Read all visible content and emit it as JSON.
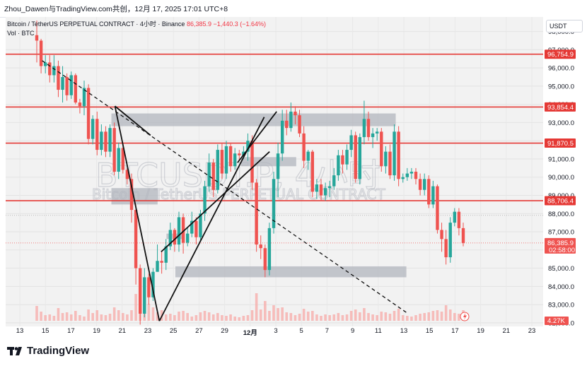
{
  "credit": "Zhou_Dawen与TradingView.com共创，12月 17, 2025 17:01 UTC+8",
  "legend": {
    "symbol": "Bitcoin / TetherUS PERPETUAL CONTRACT · 4小时 · Binance",
    "price": "86,385.9",
    "change": "−1,440.3 (−1.64%)",
    "volume": "Vol · BTC"
  },
  "currency": "USDT",
  "watermark": {
    "ticker": "BTCUSDT.P, 4小时",
    "name": "Bitcoin / TetherUS PERPETUAL CONTRACT"
  },
  "colors": {
    "up": "#26a69a",
    "down": "#ef5350",
    "level": "#e53935",
    "zone": "#b2b5be"
  },
  "levels": [
    {
      "price": 96754.9,
      "label": "96,754.9"
    },
    {
      "price": 93854.4,
      "label": "93,854.4"
    },
    {
      "price": 91870.5,
      "label": "91,870.5"
    },
    {
      "price": 88706.4,
      "label": "88,706.4"
    }
  ],
  "last_price": {
    "price": 86385.9,
    "label": "86,385.9",
    "countdown": "02:58:00"
  },
  "volume_badge": "4.27K",
  "icons": {
    "alert": "lightning-icon",
    "logo": "tradingview-logo-icon"
  },
  "chart_data": {
    "type": "candlestick",
    "title": "Bitcoin / TetherUS PERPETUAL CONTRACT · 4小时 · Binance",
    "timeframe": "4小时",
    "y_ticks": [
      "98,000.0",
      "97,000.0",
      "96,000.0",
      "95,000.0",
      "94,000.0",
      "93,000.0",
      "92,000.0",
      "91,000.0",
      "90,000.0",
      "89,000.0",
      "88,000.0",
      "87,000.0",
      "86,000.0",
      "85,000.0",
      "84,000.0",
      "83,000.0",
      "82,000.0"
    ],
    "y_tick_values": [
      98000,
      97000,
      96000,
      95000,
      94000,
      93000,
      92000,
      91000,
      90000,
      89000,
      88000,
      87000,
      86000,
      85000,
      84000,
      83000,
      82000
    ],
    "ylim": [
      81800,
      98800
    ],
    "x_ticks": [
      "13",
      "15",
      "17",
      "19",
      "21",
      "23",
      "25",
      "27",
      "29",
      "12月",
      "3",
      "5",
      "7",
      "9",
      "11",
      "13",
      "15",
      "17",
      "19",
      "21",
      "23"
    ],
    "candle_day_range": [
      14,
      38
    ],
    "closes": [
      97500,
      96100,
      96300,
      95600,
      96100,
      94800,
      95500,
      94500,
      95600,
      94100,
      93900,
      94900,
      92100,
      93200,
      91500,
      92500,
      91400,
      92700,
      90300,
      91600,
      90400,
      89900,
      88200,
      85000,
      82500,
      84500,
      83400,
      84800,
      85400,
      85300,
      86200,
      87100,
      86300,
      87800,
      86400,
      86900,
      87600,
      86700,
      88000,
      89500,
      90800,
      89300,
      91500,
      90200,
      91700,
      90600,
      91300,
      91200,
      91400,
      92000,
      89700,
      86300,
      86100,
      84900,
      87200,
      89900,
      91300,
      93100,
      92700,
      93600,
      93400,
      92400,
      90900,
      91400,
      89200,
      89600,
      89000,
      89400,
      89500,
      90100,
      91200,
      90700,
      91500,
      92300,
      89900,
      92200,
      93200,
      92200,
      92400,
      92500,
      90600,
      91400,
      90100,
      92500,
      89900,
      90000,
      90200,
      90300,
      89900,
      89300,
      89900,
      88500,
      89500,
      87100,
      86600,
      85600,
      87500,
      88100,
      87200,
      86386
    ],
    "highs": [
      98600,
      97600,
      96700,
      96700,
      96700,
      96400,
      96100,
      95700,
      95800,
      95700,
      94300,
      95300,
      95100,
      93400,
      93600,
      92900,
      92800,
      92900,
      93000,
      91900,
      91800,
      90500,
      90200,
      88500,
      85200,
      85000,
      84700,
      85000,
      86300,
      85900,
      86600,
      87500,
      87200,
      88100,
      88000,
      87200,
      88100,
      87800,
      88200,
      89800,
      91300,
      91000,
      91800,
      91900,
      92000,
      91900,
      91600,
      91500,
      91700,
      92400,
      92300,
      89900,
      86800,
      86300,
      87500,
      90300,
      91900,
      93700,
      93700,
      94100,
      93900,
      93700,
      92800,
      91500,
      91500,
      89900,
      89900,
      89700,
      89800,
      90500,
      91500,
      91500,
      91800,
      92600,
      92500,
      92400,
      94200,
      93600,
      92700,
      92700,
      92700,
      91700,
      91800,
      92900,
      92800,
      90200,
      90500,
      90500,
      90500,
      90200,
      90200,
      90100,
      89800,
      89600,
      87500,
      87100,
      87800,
      88300,
      88300,
      87500
    ],
    "lows": [
      96300,
      95700,
      95700,
      95200,
      95200,
      94400,
      94100,
      94200,
      94300,
      94000,
      93500,
      93400,
      91800,
      91800,
      91200,
      91200,
      91100,
      91100,
      90100,
      89900,
      90200,
      89600,
      87500,
      84100,
      81900,
      82300,
      83000,
      83200,
      84900,
      84700,
      84900,
      86000,
      85900,
      85900,
      85800,
      86200,
      86700,
      86300,
      86500,
      87600,
      89200,
      88900,
      89100,
      89900,
      89900,
      90300,
      90400,
      90900,
      91000,
      90900,
      89300,
      85900,
      85500,
      84500,
      84600,
      86900,
      88900,
      90900,
      92300,
      92500,
      92900,
      92200,
      90500,
      90400,
      88900,
      88800,
      88700,
      88700,
      88900,
      89300,
      89800,
      90200,
      90400,
      91100,
      89700,
      89600,
      91800,
      92000,
      91600,
      92000,
      90300,
      90200,
      89900,
      89800,
      89500,
      89700,
      89800,
      89900,
      89600,
      89000,
      89000,
      88300,
      88300,
      86900,
      85900,
      85200,
      85300,
      87300,
      86800,
      86200
    ],
    "volumes": [
      2.1,
      1.3,
      0.8,
      0.9,
      0.7,
      1.8,
      1.1,
      1.2,
      0.9,
      1.4,
      0.8,
      0.6,
      1.6,
      1.1,
      1.5,
      0.9,
      0.8,
      1.0,
      1.9,
      1.5,
      1.1,
      0.9,
      1.5,
      3.8,
      4.9,
      3.6,
      2.4,
      1.9,
      1.2,
      1.5,
      0.9,
      1.0,
      0.8,
      1.3,
      1.4,
      1.1,
      0.6,
      0.8,
      1.2,
      1.4,
      1.2,
      0.9,
      1.1,
      0.8,
      0.7,
      0.9,
      0.6,
      0.5,
      0.7,
      0.8,
      1.5,
      3.9,
      1.6,
      2.8,
      1.4,
      2.2,
      1.8,
      1.9,
      1.2,
      1.1,
      0.8,
      1.0,
      1.7,
      1.3,
      1.4,
      0.9,
      0.7,
      0.9,
      0.8,
      0.9,
      1.1,
      0.8,
      0.9,
      1.4,
      1.6,
      1.2,
      1.8,
      1.1,
      0.9,
      0.8,
      1.3,
      1.2,
      1.0,
      1.4,
      1.7,
      0.8,
      0.7,
      0.6,
      0.8,
      1.0,
      1.1,
      1.2,
      1.4,
      1.5,
      1.3,
      2.2,
      1.6,
      1.1,
      1.0,
      1.5
    ],
    "zones": [
      {
        "top": 93500,
        "bottom": 92800,
        "day_from": 18.2,
        "day_to": 34.2
      },
      {
        "top": 91100,
        "bottom": 90600,
        "day_from": 25.5,
        "day_to": 28.6
      },
      {
        "top": 89400,
        "bottom": 88500,
        "day_from": 18.2,
        "day_to": 20.8
      },
      {
        "top": 86900,
        "bottom": 86600,
        "day_from": 21.3,
        "day_to": 22.3
      },
      {
        "top": 85100,
        "bottom": 84500,
        "day_from": 21.8,
        "day_to": 34.8
      }
    ],
    "trendlines": [
      {
        "style": "dashed",
        "from": [
          14.3,
          96400
        ],
        "to": [
          34.9,
          82500
        ]
      },
      {
        "style": "solid",
        "from": [
          18.4,
          93900
        ],
        "to": [
          20.4,
          92300
        ]
      },
      {
        "style": "solid",
        "from": [
          18.4,
          93900
        ],
        "to": [
          20.9,
          82100
        ]
      },
      {
        "style": "solid",
        "from": [
          20.9,
          82100
        ],
        "to": [
          26.8,
          93300
        ]
      },
      {
        "style": "solid",
        "from": [
          21.0,
          85900
        ],
        "to": [
          27.1,
          91400
        ]
      },
      {
        "style": "solid",
        "from": [
          25.3,
          90800
        ],
        "to": [
          27.5,
          93600
        ]
      }
    ]
  }
}
